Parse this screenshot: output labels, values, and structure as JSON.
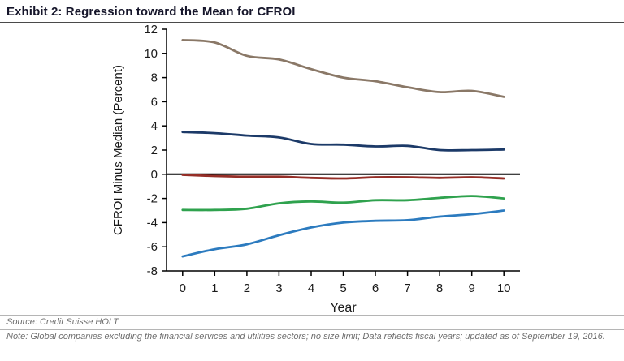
{
  "header": {
    "title": "Exhibit 2: Regression toward the Mean for CFROI"
  },
  "footer": {
    "source": "Source: Credit Suisse HOLT",
    "note": "Note: Global companies excluding the financial services and utilities sectors; no size limit; Data reflects fiscal years; updated as of September 19, 2016."
  },
  "chart_data": {
    "type": "line",
    "title": "Regression toward the Mean for CFROI",
    "xlabel": "Year",
    "ylabel": "CFROI Minus Median (Percent)",
    "x": [
      0,
      1,
      2,
      3,
      4,
      5,
      6,
      7,
      8,
      9,
      10
    ],
    "xlim": [
      0,
      10
    ],
    "ylim": [
      -8,
      12
    ],
    "ytick_step": 2,
    "grid": false,
    "legend": false,
    "zero_line": true,
    "axis_color": "#000000",
    "series": [
      {
        "name": "brown-line-top-quintile",
        "color": "#8a7867",
        "values": [
          11.1,
          10.9,
          9.8,
          9.5,
          8.7,
          8.0,
          7.7,
          7.2,
          6.8,
          6.9,
          6.4
        ]
      },
      {
        "name": "navy-line-second-quintile",
        "color": "#1c3a68",
        "values": [
          3.5,
          3.4,
          3.2,
          3.05,
          2.5,
          2.45,
          2.3,
          2.35,
          2.0,
          2.0,
          2.05
        ]
      },
      {
        "name": "dark-red-line-middle-quintile",
        "color": "#952e27",
        "values": [
          -0.05,
          -0.15,
          -0.2,
          -0.2,
          -0.3,
          -0.35,
          -0.25,
          -0.25,
          -0.3,
          -0.25,
          -0.35
        ]
      },
      {
        "name": "green-line-fourth-quintile",
        "color": "#2fa24e",
        "values": [
          -2.95,
          -2.95,
          -2.85,
          -2.4,
          -2.25,
          -2.35,
          -2.15,
          -2.15,
          -1.95,
          -1.8,
          -2.0
        ]
      },
      {
        "name": "light-blue-line-bottom-quintile",
        "color": "#2c7bbf",
        "values": [
          -6.8,
          -6.2,
          -5.8,
          -5.05,
          -4.4,
          -4.0,
          -3.85,
          -3.8,
          -3.5,
          -3.3,
          -3.0
        ]
      }
    ]
  }
}
